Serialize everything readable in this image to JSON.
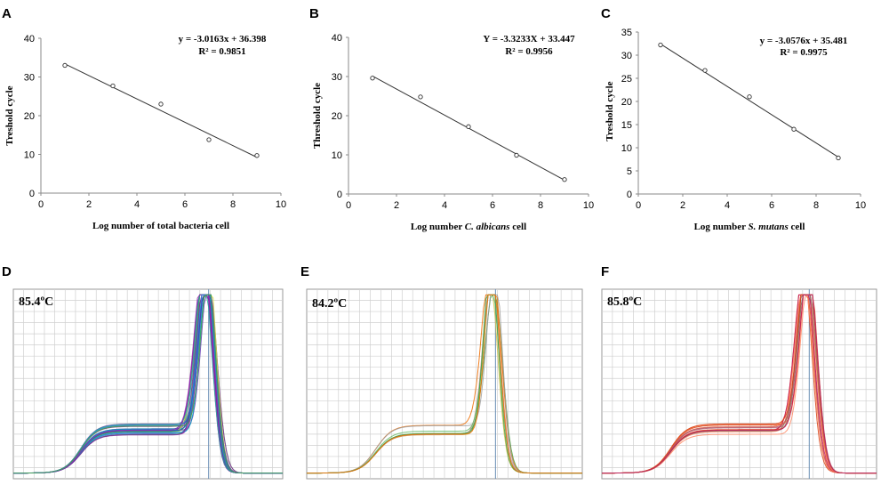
{
  "chart_data": [
    {
      "type": "scatter",
      "panel": "A",
      "ylabel": "Treshold cycle",
      "xlabel_parts": [
        {
          "text": "Log  number  of total bacteria cell",
          "italic": false
        }
      ],
      "equation": "y = -3.0163x + 36.398",
      "r2": "R² = 0.9851",
      "xlim": [
        0,
        10
      ],
      "ylim": [
        0,
        40
      ],
      "xticks": [
        0,
        2,
        4,
        6,
        8,
        10
      ],
      "yticks": [
        0,
        10,
        20,
        30,
        40
      ],
      "x": [
        1,
        3,
        5,
        7,
        9
      ],
      "y": [
        33.0,
        27.7,
        23.0,
        13.8,
        9.7
      ],
      "trendline": {
        "slope": -3.0163,
        "intercept": 36.398,
        "x_range": [
          1,
          9
        ]
      }
    },
    {
      "type": "scatter",
      "panel": "B",
      "ylabel": "Threshold cycle",
      "xlabel_parts": [
        {
          "text": "Log number  ",
          "italic": false
        },
        {
          "text": "C. albicans",
          "italic": true
        },
        {
          "text": " cell",
          "italic": false
        }
      ],
      "equation": "Y = -3.3233X + 33.447",
      "r2": "R² = 0.9956",
      "xlim": [
        0,
        10
      ],
      "ylim": [
        0,
        40
      ],
      "xticks": [
        0,
        2,
        4,
        6,
        8,
        10
      ],
      "yticks": [
        0,
        10,
        20,
        30,
        40
      ],
      "x": [
        1,
        3,
        5,
        7,
        9
      ],
      "y": [
        29.6,
        24.8,
        17.2,
        9.9,
        3.7
      ],
      "trendline": {
        "slope": -3.3233,
        "intercept": 33.447,
        "x_range": [
          1,
          9
        ]
      }
    },
    {
      "type": "scatter",
      "panel": "C",
      "ylabel": "Treshold cycle",
      "xlabel_parts": [
        {
          "text": "Log number  ",
          "italic": false
        },
        {
          "text": "S. mutans",
          "italic": true
        },
        {
          "text": "  cell",
          "italic": false
        }
      ],
      "equation": "y = -3.0576x + 35.481",
      "r2": "R² = 0.9975",
      "xlim": [
        0,
        10
      ],
      "ylim": [
        0,
        35
      ],
      "xticks": [
        0,
        2,
        4,
        6,
        8,
        10
      ],
      "yticks": [
        0,
        5,
        10,
        15,
        20,
        25,
        30,
        35
      ],
      "x": [
        1,
        3,
        5,
        7,
        9
      ],
      "y": [
        32.2,
        26.7,
        21.0,
        14.0,
        7.8
      ],
      "trendline": {
        "slope": -3.0576,
        "intercept": 35.481,
        "x_range": [
          1,
          9
        ]
      }
    },
    {
      "type": "line",
      "panel": "D",
      "label": "85.4ºC",
      "palette": [
        "#7b1fa2",
        "#3949ab",
        "#26a69a",
        "#9c27b0",
        "#1e88e5",
        "#43a047",
        "#5e35b1",
        "#00acc1",
        "#8e24aa",
        "#cddc39"
      ]
    },
    {
      "type": "line",
      "panel": "E",
      "label": "84.2ºC",
      "palette": [
        "#43a047",
        "#ef6c00",
        "#d4c24a",
        "#9e9e9e",
        "#c98f8f",
        "#66bb6a"
      ]
    },
    {
      "type": "line",
      "panel": "F",
      "label": "85.8ºC",
      "palette": [
        "#e64a19",
        "#ff7043",
        "#b05b6b",
        "#d84315",
        "#ff8a65",
        "#8d6e63",
        "#c2185b"
      ]
    }
  ]
}
